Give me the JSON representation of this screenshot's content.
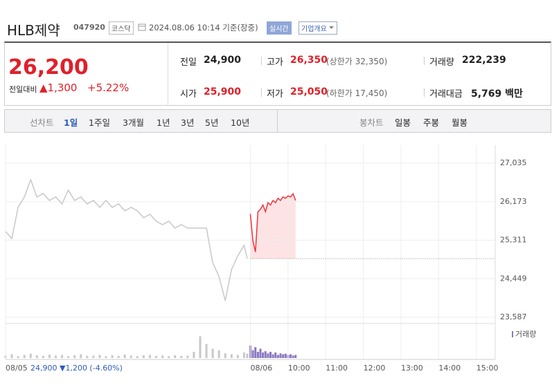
{
  "header": {
    "name": "HLB제약",
    "code": "047920",
    "market": "코스닥",
    "timestamp": "2024.08.06 10:14 기준(장중)",
    "realtime": "실시간",
    "company": "기업개요"
  },
  "quote": {
    "price": "26,200",
    "change_label": "전일대비",
    "change": "▲1,300",
    "change_pct": "+5.22%",
    "stats": [
      {
        "label": "전일",
        "value": "24,900",
        "color": "#222222"
      },
      {
        "label": "고가",
        "value": "26,350",
        "note": "(상한가 32,350)",
        "color": "#e0202a"
      },
      {
        "label": "거래량",
        "value": "222,239",
        "color": "#222222"
      },
      {
        "label": "시가",
        "value": "25,900",
        "color": "#e0202a"
      },
      {
        "label": "저가",
        "value": "25,050",
        "note": "(하한가 17,450)",
        "color": "#e0202a"
      },
      {
        "label": "거래대금",
        "value": "5,769 백만",
        "color": "#222222"
      }
    ]
  },
  "tabs": {
    "line_label": "선차트",
    "line": [
      "1일",
      "1주일",
      "3개월",
      "1년",
      "3년",
      "5년",
      "10년"
    ],
    "candle_label": "봉차트",
    "candle": [
      "일봉",
      "주봉",
      "월봉"
    ]
  },
  "chart_data": {
    "type": "line",
    "grid": true,
    "xlim": [
      0,
      780
    ],
    "xticks": [
      {
        "value": 0,
        "label": "08/05"
      },
      {
        "value": 390,
        "label": "08/06"
      },
      {
        "value": 450,
        "label": "10:00"
      },
      {
        "value": 510,
        "label": "11:00"
      },
      {
        "value": 570,
        "label": "12:00"
      },
      {
        "value": 630,
        "label": "13:00"
      },
      {
        "value": 690,
        "label": "14:00"
      },
      {
        "value": 750,
        "label": "15:00"
      }
    ],
    "ylim": [
      23448,
      27437
    ],
    "yticks": [
      {
        "value": 23587,
        "label": "23,587"
      },
      {
        "value": 24449,
        "label": "24,449"
      },
      {
        "value": 25311,
        "label": "25,311"
      },
      {
        "value": 26173,
        "label": "26,173"
      },
      {
        "value": 27035,
        "label": "27,035"
      }
    ],
    "base": 24900,
    "prev_summary": "24,900 ▼1,200 (-4.60%)",
    "series": [
      {
        "color": "#c8c8c8",
        "x": [
          0,
          10,
          20,
          30,
          40,
          50,
          60,
          70,
          80,
          90,
          100,
          110,
          120,
          130,
          140,
          150,
          160,
          170,
          180,
          190,
          200,
          210,
          220,
          230,
          240,
          250,
          260,
          270,
          280,
          290,
          300,
          310,
          320,
          330,
          340,
          350,
          360,
          370,
          380,
          385
        ],
        "values": [
          25504,
          25350,
          26046,
          26278,
          26664,
          26278,
          26355,
          26200,
          26278,
          26123,
          26432,
          26200,
          26278,
          26123,
          26200,
          26046,
          26200,
          26046,
          26123,
          25968,
          26046,
          25968,
          25814,
          25891,
          25736,
          25659,
          25736,
          25582,
          25659,
          25582,
          25582,
          25582,
          25582,
          24809,
          24500,
          23958,
          24654,
          24963,
          25195,
          24900
        ]
      },
      {
        "color": "#f0323c",
        "fill": "#fde3e4",
        "x": [
          390,
          394,
          398,
          402,
          406,
          410,
          414,
          418,
          422,
          426,
          430,
          434,
          438,
          442,
          446,
          450,
          454,
          458,
          462
        ],
        "values": [
          25900,
          25300,
          25050,
          25950,
          26000,
          26100,
          25950,
          26150,
          26100,
          26200,
          26150,
          26250,
          26200,
          26280,
          26250,
          26300,
          26280,
          26350,
          26200
        ]
      }
    ],
    "volume": {
      "name": "거래량",
      "color": "#8a78c0",
      "vlim": [
        0,
        100
      ],
      "series": [
        {
          "color": "#c8c8c8",
          "values": [
            8,
            12,
            6,
            10,
            14,
            9,
            7,
            11,
            8,
            10,
            6,
            9,
            12,
            7,
            8,
            10,
            6,
            9,
            7,
            11,
            8,
            6,
            9,
            10,
            7,
            8,
            6,
            9,
            7,
            8,
            20,
            70,
            45,
            30,
            25,
            15,
            12,
            10,
            18,
            14
          ]
        },
        {
          "color": "#8a78c0",
          "values": [
            40,
            25,
            35,
            20,
            30,
            18,
            22,
            15,
            20,
            12,
            18,
            10,
            15,
            12,
            14,
            10,
            12,
            8,
            10
          ]
        }
      ]
    }
  }
}
